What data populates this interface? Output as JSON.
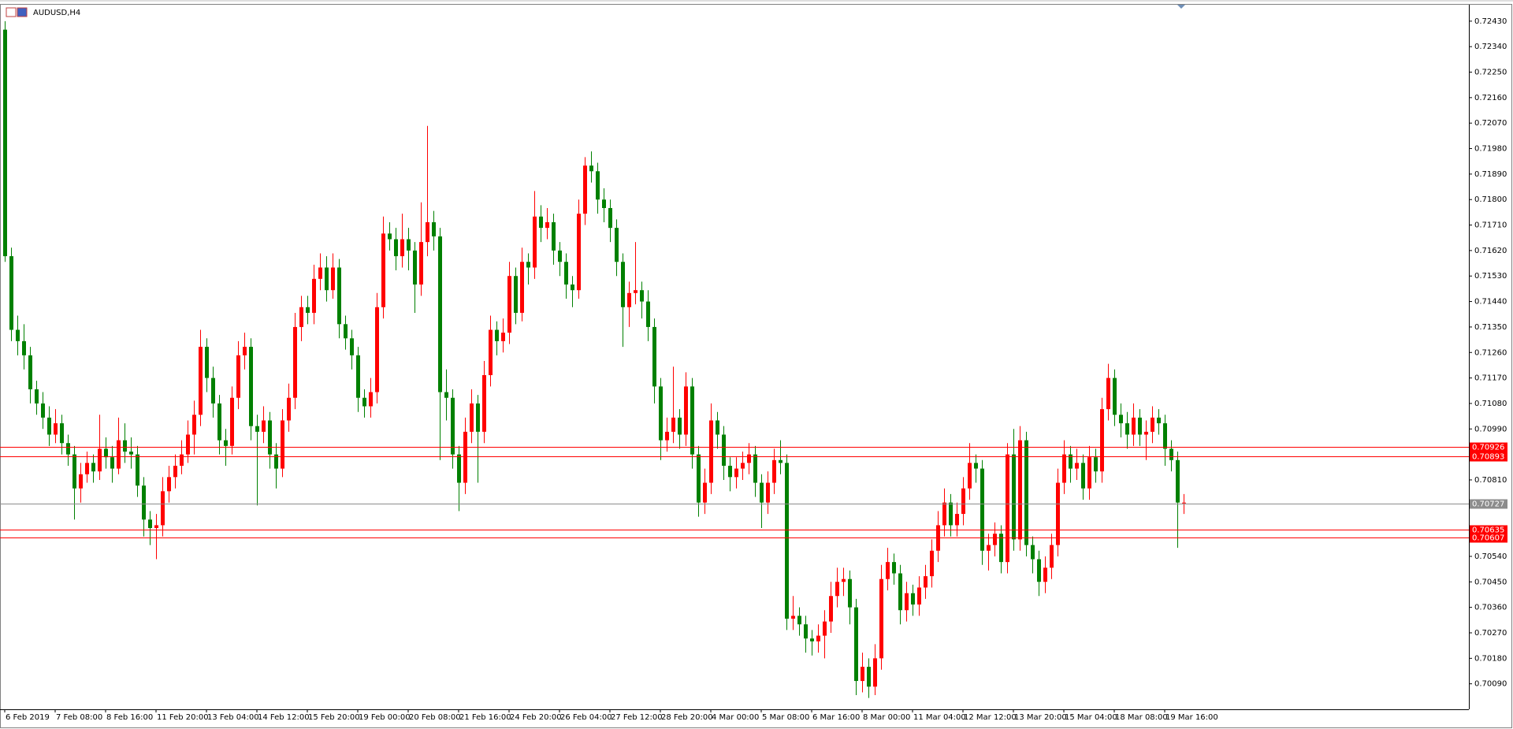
{
  "chart_data": {
    "type": "candlestick",
    "title": "AUDUSD,H4",
    "up_color": "#ff0000",
    "down_color": "#008000",
    "grid": false,
    "ylim": [
      0.7,
      0.72488
    ],
    "yticks": [
      {
        "value": 0.7009,
        "label": "0.70090"
      },
      {
        "value": 0.7018,
        "label": "0.70180"
      },
      {
        "value": 0.7027,
        "label": "0.70270"
      },
      {
        "value": 0.7036,
        "label": "0.70360"
      },
      {
        "value": 0.7045,
        "label": "0.70450"
      },
      {
        "value": 0.7054,
        "label": "0.70540"
      },
      {
        "value": 0.7081,
        "label": "0.70810"
      },
      {
        "value": 0.7099,
        "label": "0.70990"
      },
      {
        "value": 0.7108,
        "label": "0.71080"
      },
      {
        "value": 0.7117,
        "label": "0.71170"
      },
      {
        "value": 0.7126,
        "label": "0.71260"
      },
      {
        "value": 0.7135,
        "label": "0.71350"
      },
      {
        "value": 0.7144,
        "label": "0.71440"
      },
      {
        "value": 0.7153,
        "label": "0.71530"
      },
      {
        "value": 0.7162,
        "label": "0.71620"
      },
      {
        "value": 0.7171,
        "label": "0.71710"
      },
      {
        "value": 0.718,
        "label": "0.71800"
      },
      {
        "value": 0.7189,
        "label": "0.71890"
      },
      {
        "value": 0.7198,
        "label": "0.71980"
      },
      {
        "value": 0.7207,
        "label": "0.72070"
      },
      {
        "value": 0.7216,
        "label": "0.72160"
      },
      {
        "value": 0.7225,
        "label": "0.72250"
      },
      {
        "value": 0.7234,
        "label": "0.72340"
      },
      {
        "value": 0.7243,
        "label": "0.72430"
      }
    ],
    "levels": [
      {
        "value": 0.70926,
        "color": "#ff0000"
      },
      {
        "value": 0.70893,
        "color": "#ff0000"
      },
      {
        "value": 0.70727,
        "color": "#8c8c8c"
      },
      {
        "value": 0.70635,
        "color": "#ff0000"
      },
      {
        "value": 0.70607,
        "color": "#ff0000"
      }
    ],
    "categories": [
      "6 Feb 2019",
      null,
      null,
      null,
      null,
      null,
      null,
      null,
      "7 Feb 08:00",
      null,
      null,
      null,
      null,
      null,
      null,
      null,
      "8 Feb 16:00",
      null,
      null,
      null,
      null,
      null,
      null,
      null,
      "11 Feb 20:00",
      null,
      null,
      null,
      null,
      null,
      null,
      null,
      "13 Feb 04:00",
      null,
      null,
      null,
      null,
      null,
      null,
      null,
      "14 Feb 12:00",
      null,
      null,
      null,
      null,
      null,
      null,
      null,
      "15 Feb 20:00",
      null,
      null,
      null,
      null,
      null,
      null,
      null,
      "19 Feb 00:00",
      null,
      null,
      null,
      null,
      null,
      null,
      null,
      "20 Feb 08:00",
      null,
      null,
      null,
      null,
      null,
      null,
      null,
      "21 Feb 16:00",
      null,
      null,
      null,
      null,
      null,
      null,
      null,
      "24 Feb 20:00",
      null,
      null,
      null,
      null,
      null,
      null,
      null,
      "26 Feb 04:00",
      null,
      null,
      null,
      null,
      null,
      null,
      null,
      "27 Feb 12:00",
      null,
      null,
      null,
      null,
      null,
      null,
      null,
      "28 Feb 20:00",
      null,
      null,
      null,
      null,
      null,
      null,
      null,
      "4 Mar 00:00",
      null,
      null,
      null,
      null,
      null,
      null,
      null,
      "5 Mar 08:00",
      null,
      null,
      null,
      null,
      null,
      null,
      null,
      "6 Mar 16:00",
      null,
      null,
      null,
      null,
      null,
      null,
      null,
      "8 Mar 00:00",
      null,
      null,
      null,
      null,
      null,
      null,
      null,
      "11 Mar 04:00",
      null,
      null,
      null,
      null,
      null,
      null,
      null,
      "12 Mar 12:00",
      null,
      null,
      null,
      null,
      null,
      null,
      null,
      "13 Mar 20:00",
      null,
      null,
      null,
      null,
      null,
      null,
      null,
      "15 Mar 04:00",
      null,
      null,
      null,
      null,
      null,
      null,
      null,
      "18 Mar 08:00",
      null,
      null,
      null,
      null,
      null,
      null,
      null,
      "19 Mar 16:00",
      null,
      null,
      null
    ],
    "candles": [
      [
        0.724,
        0.7243,
        0.7158,
        0.716
      ],
      [
        0.716,
        0.7163,
        0.713,
        0.7134
      ],
      [
        0.7134,
        0.7139,
        0.7125,
        0.713
      ],
      [
        0.713,
        0.7136,
        0.712,
        0.7125
      ],
      [
        0.7125,
        0.7128,
        0.7108,
        0.7113
      ],
      [
        0.7113,
        0.7116,
        0.7104,
        0.7108
      ],
      [
        0.7108,
        0.7112,
        0.7099,
        0.7103
      ],
      [
        0.7103,
        0.7107,
        0.7093,
        0.7097
      ],
      [
        0.7097,
        0.7106,
        0.7094,
        0.7101
      ],
      [
        0.7101,
        0.7104,
        0.709,
        0.7094
      ],
      [
        0.7094,
        0.7097,
        0.7086,
        0.709
      ],
      [
        0.709,
        0.7093,
        0.7067,
        0.7078
      ],
      [
        0.7078,
        0.7087,
        0.7073,
        0.7083
      ],
      [
        0.7083,
        0.7091,
        0.708,
        0.7087
      ],
      [
        0.7087,
        0.709,
        0.708,
        0.7084
      ],
      [
        0.7084,
        0.7104,
        0.7081,
        0.7092
      ],
      [
        0.7092,
        0.7096,
        0.7085,
        0.7089
      ],
      [
        0.7089,
        0.7093,
        0.708,
        0.7085
      ],
      [
        0.7085,
        0.7103,
        0.7083,
        0.7095
      ],
      [
        0.7095,
        0.7101,
        0.7087,
        0.7091
      ],
      [
        0.7091,
        0.7096,
        0.7085,
        0.709
      ],
      [
        0.709,
        0.7093,
        0.7075,
        0.7079
      ],
      [
        0.7079,
        0.7082,
        0.7061,
        0.7067
      ],
      [
        0.7067,
        0.707,
        0.7058,
        0.7064
      ],
      [
        0.7064,
        0.7069,
        0.7053,
        0.7065
      ],
      [
        0.7065,
        0.7082,
        0.7061,
        0.7077
      ],
      [
        0.7077,
        0.7086,
        0.7073,
        0.7082
      ],
      [
        0.7082,
        0.709,
        0.7078,
        0.7086
      ],
      [
        0.7086,
        0.7095,
        0.7083,
        0.709
      ],
      [
        0.709,
        0.7102,
        0.7087,
        0.7097
      ],
      [
        0.7097,
        0.7109,
        0.709,
        0.7104
      ],
      [
        0.7104,
        0.7134,
        0.71,
        0.7128
      ],
      [
        0.7128,
        0.7131,
        0.7112,
        0.7117
      ],
      [
        0.7117,
        0.7121,
        0.7103,
        0.7108
      ],
      [
        0.7108,
        0.7111,
        0.709,
        0.7095
      ],
      [
        0.7095,
        0.7099,
        0.7086,
        0.7093
      ],
      [
        0.7093,
        0.7114,
        0.709,
        0.711
      ],
      [
        0.711,
        0.713,
        0.7106,
        0.7125
      ],
      [
        0.7125,
        0.7133,
        0.712,
        0.7128
      ],
      [
        0.7128,
        0.7131,
        0.7095,
        0.71
      ],
      [
        0.71,
        0.7104,
        0.7072,
        0.7098
      ],
      [
        0.7098,
        0.7107,
        0.7094,
        0.7102
      ],
      [
        0.7102,
        0.7105,
        0.7085,
        0.709
      ],
      [
        0.709,
        0.7094,
        0.7078,
        0.7085
      ],
      [
        0.7085,
        0.7106,
        0.7082,
        0.7102
      ],
      [
        0.7102,
        0.7115,
        0.7098,
        0.711
      ],
      [
        0.711,
        0.714,
        0.7106,
        0.7135
      ],
      [
        0.7135,
        0.7146,
        0.713,
        0.7142
      ],
      [
        0.7142,
        0.7146,
        0.7136,
        0.714
      ],
      [
        0.714,
        0.7157,
        0.7136,
        0.7152
      ],
      [
        0.7152,
        0.7161,
        0.7148,
        0.7156
      ],
      [
        0.7156,
        0.716,
        0.7144,
        0.7148
      ],
      [
        0.7148,
        0.7161,
        0.7145,
        0.7156
      ],
      [
        0.7156,
        0.7159,
        0.7131,
        0.7136
      ],
      [
        0.7136,
        0.7139,
        0.7127,
        0.7131
      ],
      [
        0.7131,
        0.7134,
        0.712,
        0.7125
      ],
      [
        0.7125,
        0.7128,
        0.7105,
        0.711
      ],
      [
        0.711,
        0.7113,
        0.7103,
        0.7107
      ],
      [
        0.7107,
        0.7117,
        0.7103,
        0.7112
      ],
      [
        0.7112,
        0.7147,
        0.7108,
        0.7142
      ],
      [
        0.7142,
        0.7174,
        0.7138,
        0.7168
      ],
      [
        0.7168,
        0.7172,
        0.7162,
        0.7166
      ],
      [
        0.7166,
        0.717,
        0.7155,
        0.716
      ],
      [
        0.716,
        0.7175,
        0.7156,
        0.7166
      ],
      [
        0.7166,
        0.717,
        0.7155,
        0.7162
      ],
      [
        0.7162,
        0.7165,
        0.714,
        0.715
      ],
      [
        0.715,
        0.7179,
        0.7146,
        0.7165
      ],
      [
        0.7165,
        0.7206,
        0.716,
        0.7172
      ],
      [
        0.7172,
        0.7176,
        0.7162,
        0.7167
      ],
      [
        0.7167,
        0.717,
        0.7088,
        0.7112
      ],
      [
        0.7112,
        0.712,
        0.7102,
        0.711
      ],
      [
        0.711,
        0.7113,
        0.7085,
        0.709
      ],
      [
        0.709,
        0.7093,
        0.707,
        0.708
      ],
      [
        0.708,
        0.7103,
        0.7076,
        0.7098
      ],
      [
        0.7098,
        0.7113,
        0.7094,
        0.7108
      ],
      [
        0.7108,
        0.7111,
        0.708,
        0.7098
      ],
      [
        0.7098,
        0.7123,
        0.7094,
        0.7118
      ],
      [
        0.7118,
        0.7139,
        0.7114,
        0.7134
      ],
      [
        0.7134,
        0.7137,
        0.7125,
        0.713
      ],
      [
        0.713,
        0.7138,
        0.7126,
        0.7133
      ],
      [
        0.7133,
        0.7158,
        0.7129,
        0.7153
      ],
      [
        0.7153,
        0.7156,
        0.7136,
        0.714
      ],
      [
        0.714,
        0.7163,
        0.7137,
        0.7158
      ],
      [
        0.7158,
        0.7161,
        0.715,
        0.7156
      ],
      [
        0.7156,
        0.7183,
        0.7152,
        0.7174
      ],
      [
        0.7174,
        0.7178,
        0.7165,
        0.717
      ],
      [
        0.717,
        0.7177,
        0.7166,
        0.7172
      ],
      [
        0.7172,
        0.7175,
        0.7157,
        0.7162
      ],
      [
        0.7162,
        0.7165,
        0.7153,
        0.7158
      ],
      [
        0.7158,
        0.7161,
        0.7145,
        0.715
      ],
      [
        0.715,
        0.7153,
        0.7142,
        0.7148
      ],
      [
        0.7148,
        0.718,
        0.7145,
        0.7175
      ],
      [
        0.7175,
        0.7195,
        0.7171,
        0.7192
      ],
      [
        0.7192,
        0.7197,
        0.7186,
        0.719
      ],
      [
        0.719,
        0.7193,
        0.7175,
        0.718
      ],
      [
        0.718,
        0.7184,
        0.7172,
        0.7177
      ],
      [
        0.7177,
        0.718,
        0.7165,
        0.717
      ],
      [
        0.717,
        0.7173,
        0.7153,
        0.7158
      ],
      [
        0.7158,
        0.7161,
        0.7128,
        0.7142
      ],
      [
        0.7142,
        0.7151,
        0.7135,
        0.7147
      ],
      [
        0.7147,
        0.7165,
        0.7143,
        0.7148
      ],
      [
        0.7148,
        0.7151,
        0.7138,
        0.7144
      ],
      [
        0.7144,
        0.7148,
        0.713,
        0.7135
      ],
      [
        0.7135,
        0.7138,
        0.7108,
        0.7114
      ],
      [
        0.7114,
        0.7117,
        0.7088,
        0.7095
      ],
      [
        0.7095,
        0.7103,
        0.7091,
        0.7098
      ],
      [
        0.7098,
        0.7121,
        0.7094,
        0.7103
      ],
      [
        0.7103,
        0.7106,
        0.7092,
        0.7097
      ],
      [
        0.7097,
        0.7119,
        0.7093,
        0.7114
      ],
      [
        0.7114,
        0.7117,
        0.7085,
        0.709
      ],
      [
        0.709,
        0.7093,
        0.7068,
        0.7073
      ],
      [
        0.7073,
        0.7085,
        0.7069,
        0.708
      ],
      [
        0.708,
        0.7108,
        0.7076,
        0.7102
      ],
      [
        0.7102,
        0.7105,
        0.7092,
        0.7097
      ],
      [
        0.7097,
        0.71,
        0.7081,
        0.7086
      ],
      [
        0.7086,
        0.7089,
        0.7077,
        0.7082
      ],
      [
        0.7082,
        0.7089,
        0.7078,
        0.7085
      ],
      [
        0.7085,
        0.7091,
        0.7081,
        0.7087
      ],
      [
        0.7087,
        0.7094,
        0.7083,
        0.709
      ],
      [
        0.709,
        0.7093,
        0.7075,
        0.708
      ],
      [
        0.708,
        0.7083,
        0.7064,
        0.7073
      ],
      [
        0.7073,
        0.7084,
        0.7069,
        0.708
      ],
      [
        0.708,
        0.7092,
        0.7076,
        0.7088
      ],
      [
        0.7088,
        0.7095,
        0.7083,
        0.7087
      ],
      [
        0.7087,
        0.709,
        0.7028,
        0.7032
      ],
      [
        0.7032,
        0.704,
        0.7028,
        0.7033
      ],
      [
        0.7033,
        0.7036,
        0.7026,
        0.703
      ],
      [
        0.703,
        0.7033,
        0.702,
        0.7025
      ],
      [
        0.7025,
        0.7028,
        0.7019,
        0.7024
      ],
      [
        0.7024,
        0.703,
        0.702,
        0.7026
      ],
      [
        0.7026,
        0.7035,
        0.7018,
        0.7031
      ],
      [
        0.7031,
        0.7045,
        0.7027,
        0.704
      ],
      [
        0.704,
        0.705,
        0.7036,
        0.7045
      ],
      [
        0.7045,
        0.705,
        0.704,
        0.7046
      ],
      [
        0.7046,
        0.7049,
        0.703,
        0.7036
      ],
      [
        0.7036,
        0.7039,
        0.7005,
        0.701
      ],
      [
        0.701,
        0.702,
        0.7006,
        0.7015
      ],
      [
        0.7015,
        0.7018,
        0.7004,
        0.7008
      ],
      [
        0.7008,
        0.7023,
        0.7005,
        0.7018
      ],
      [
        0.7018,
        0.7051,
        0.7014,
        0.7046
      ],
      [
        0.7046,
        0.7057,
        0.7042,
        0.7052
      ],
      [
        0.7052,
        0.7055,
        0.7044,
        0.7048
      ],
      [
        0.7048,
        0.7051,
        0.703,
        0.7035
      ],
      [
        0.7035,
        0.7045,
        0.7031,
        0.7041
      ],
      [
        0.7041,
        0.7044,
        0.7033,
        0.7037
      ],
      [
        0.7037,
        0.7047,
        0.7033,
        0.7043
      ],
      [
        0.7043,
        0.7051,
        0.7039,
        0.7047
      ],
      [
        0.7047,
        0.706,
        0.7043,
        0.7056
      ],
      [
        0.7056,
        0.707,
        0.7052,
        0.7065
      ],
      [
        0.7065,
        0.7078,
        0.7061,
        0.7073
      ],
      [
        0.7073,
        0.7076,
        0.7061,
        0.7065
      ],
      [
        0.7065,
        0.7073,
        0.7061,
        0.7069
      ],
      [
        0.7069,
        0.7082,
        0.7065,
        0.7078
      ],
      [
        0.7078,
        0.7094,
        0.7074,
        0.7087
      ],
      [
        0.7087,
        0.709,
        0.708,
        0.7085
      ],
      [
        0.7085,
        0.7088,
        0.7051,
        0.7056
      ],
      [
        0.7056,
        0.7062,
        0.7049,
        0.7058
      ],
      [
        0.7058,
        0.7066,
        0.7054,
        0.7062
      ],
      [
        0.7062,
        0.7065,
        0.7048,
        0.7052
      ],
      [
        0.7052,
        0.7094,
        0.7048,
        0.709
      ],
      [
        0.709,
        0.7099,
        0.7056,
        0.706
      ],
      [
        0.706,
        0.71,
        0.7056,
        0.7095
      ],
      [
        0.7095,
        0.7098,
        0.7054,
        0.7058
      ],
      [
        0.7058,
        0.7061,
        0.7048,
        0.7053
      ],
      [
        0.7053,
        0.7056,
        0.704,
        0.7045
      ],
      [
        0.7045,
        0.7054,
        0.7041,
        0.705
      ],
      [
        0.705,
        0.7062,
        0.7046,
        0.7058
      ],
      [
        0.7058,
        0.7085,
        0.7054,
        0.708
      ],
      [
        0.708,
        0.7095,
        0.7076,
        0.709
      ],
      [
        0.709,
        0.7093,
        0.708,
        0.7085
      ],
      [
        0.7085,
        0.7092,
        0.7081,
        0.7087
      ],
      [
        0.7087,
        0.709,
        0.7074,
        0.7078
      ],
      [
        0.7078,
        0.7093,
        0.7074,
        0.7089
      ],
      [
        0.7089,
        0.7092,
        0.708,
        0.7084
      ],
      [
        0.7084,
        0.711,
        0.708,
        0.7106
      ],
      [
        0.7106,
        0.7122,
        0.7102,
        0.7117
      ],
      [
        0.7117,
        0.712,
        0.71,
        0.7104
      ],
      [
        0.7104,
        0.7108,
        0.7096,
        0.7101
      ],
      [
        0.7101,
        0.7105,
        0.7092,
        0.7097
      ],
      [
        0.7097,
        0.7108,
        0.7093,
        0.7103
      ],
      [
        0.7103,
        0.7106,
        0.7093,
        0.7097
      ],
      [
        0.7097,
        0.7102,
        0.7088,
        0.7098
      ],
      [
        0.7098,
        0.7107,
        0.7094,
        0.7103
      ],
      [
        0.7103,
        0.7106,
        0.7097,
        0.7101
      ],
      [
        0.7101,
        0.7104,
        0.7086,
        0.7092
      ],
      [
        0.7092,
        0.7095,
        0.7084,
        0.7088
      ],
      [
        0.7088,
        0.7091,
        0.7057,
        0.7073
      ],
      [
        0.7073,
        0.7076,
        0.7069,
        0.7073
      ]
    ]
  }
}
